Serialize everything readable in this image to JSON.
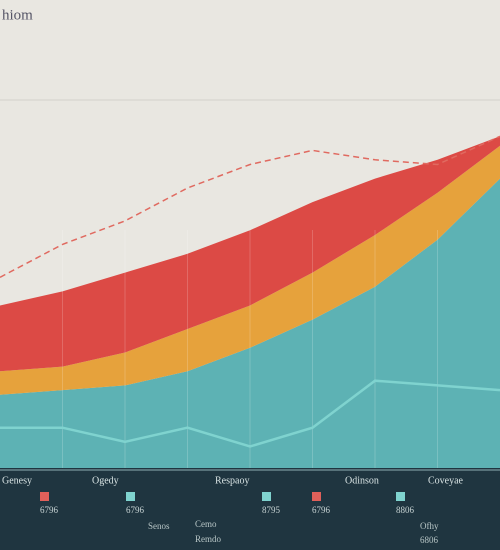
{
  "chart_data": {
    "type": "stacked_area",
    "title": "hiom",
    "categories": [
      null,
      null,
      null,
      null,
      null,
      null,
      null,
      null,
      null
    ],
    "ylim": [
      0,
      100
    ],
    "series": [
      {
        "color": "#5db2b4",
        "values": [
          16,
          17,
          18,
          21,
          26,
          32,
          39,
          49,
          62
        ]
      },
      {
        "color": "#e6a23c",
        "values": [
          5,
          5,
          7,
          9,
          9,
          10,
          11,
          10,
          7
        ]
      },
      {
        "color": "#dc4a45",
        "values": [
          14,
          16,
          17,
          16,
          16,
          15,
          12,
          7,
          2
        ]
      }
    ],
    "lines": [
      {
        "color": "#e06a60",
        "dashed": true,
        "values": [
          41,
          48,
          53,
          60,
          65,
          68,
          66,
          65,
          71
        ]
      },
      {
        "color": "#7fd3cf",
        "dashed": false,
        "values": [
          9,
          9,
          6,
          9,
          5,
          9,
          19,
          18,
          17
        ]
      }
    ]
  },
  "footer": {
    "headers": [
      "Genesy",
      "Ogedy",
      "Respaoy",
      "Odinson",
      "Coveyae"
    ],
    "items": [
      {
        "label": "6796",
        "color": "#e0605a"
      },
      {
        "label": "6796",
        "color": "#7fd3cf"
      },
      {
        "label": "8795",
        "color": "#7fd3cf"
      },
      {
        "label": "6796",
        "color": "#e0605a"
      },
      {
        "label": "8806",
        "color": "#7fd3cf"
      }
    ],
    "notes": [
      "Senos",
      "Cemo",
      "Remdo",
      "Ofhy",
      "6806"
    ]
  }
}
